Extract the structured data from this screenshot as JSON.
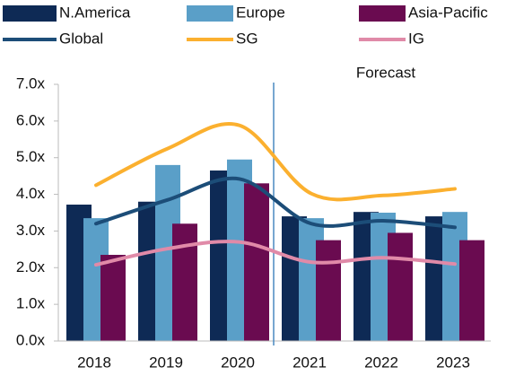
{
  "chart_data": {
    "type": "bar_line",
    "categories": [
      "2018",
      "2019",
      "2020",
      "2021",
      "2022",
      "2023"
    ],
    "series": [
      {
        "name": "N.America",
        "type": "bar",
        "color": "#0e2a55",
        "values": [
          3.72,
          3.8,
          4.65,
          3.4,
          3.52,
          3.4
        ]
      },
      {
        "name": "Europe",
        "type": "bar",
        "color": "#5a9fc8",
        "values": [
          3.35,
          4.8,
          4.95,
          3.35,
          3.5,
          3.52
        ]
      },
      {
        "name": "Asia-Pacific",
        "type": "bar",
        "color": "#6a0b50",
        "values": [
          2.35,
          3.2,
          4.3,
          2.75,
          2.95,
          2.75
        ]
      },
      {
        "name": "Global",
        "type": "line",
        "color": "#1c4d78",
        "values": [
          3.2,
          3.85,
          4.42,
          3.2,
          3.28,
          3.1
        ]
      },
      {
        "name": "SG",
        "type": "line",
        "color": "#fbb02f",
        "values": [
          4.25,
          5.25,
          5.88,
          4.02,
          3.97,
          4.15
        ]
      },
      {
        "name": "IG",
        "type": "line",
        "color": "#e08aa8",
        "values": [
          2.08,
          2.52,
          2.7,
          2.15,
          2.27,
          2.1
        ]
      }
    ],
    "annotation": "Forecast",
    "ylim": [
      0,
      7
    ],
    "yticks": [
      {
        "value": 0,
        "label": "0.0x"
      },
      {
        "value": 1,
        "label": "1.0x"
      },
      {
        "value": 2,
        "label": "2.0x"
      },
      {
        "value": 3,
        "label": "3.0x"
      },
      {
        "value": 4,
        "label": "4.0x"
      },
      {
        "value": 5,
        "label": "5.0x"
      },
      {
        "value": 6,
        "label": "6.0x"
      },
      {
        "value": 7,
        "label": "7.0x"
      }
    ],
    "grid": false
  }
}
